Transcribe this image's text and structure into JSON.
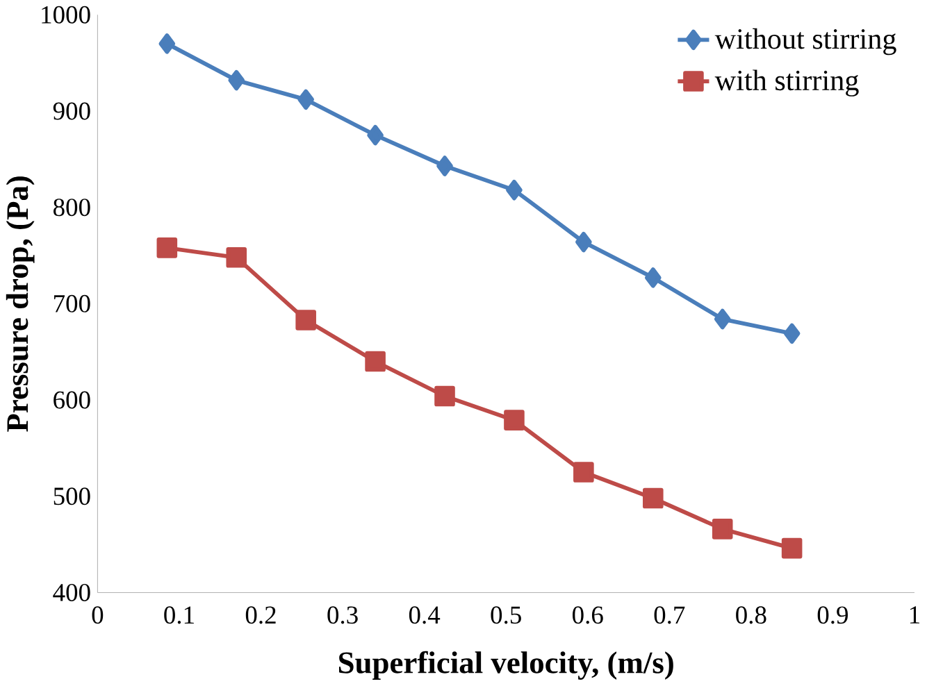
{
  "chart_data": {
    "type": "line",
    "xlabel": "Superficial velocity, (m/s)",
    "ylabel": "Pressure drop, (Pa)",
    "x": [
      0.085,
      0.17,
      0.255,
      0.34,
      0.425,
      0.51,
      0.595,
      0.68,
      0.765,
      0.85
    ],
    "series": [
      {
        "name": "without stirring",
        "color": "#4a7ebb",
        "marker": "diamond",
        "values": [
          970,
          932,
          912,
          875,
          843,
          818,
          764,
          727,
          684,
          669
        ]
      },
      {
        "name": "with stirring",
        "color": "#be4b48",
        "marker": "square",
        "values": [
          758,
          748,
          683,
          640,
          604,
          579,
          525,
          498,
          466,
          446
        ]
      }
    ],
    "xlim": [
      0,
      1
    ],
    "xticks": [
      0,
      0.1,
      0.2,
      0.3,
      0.4,
      0.5,
      0.6,
      0.7,
      0.8,
      0.9,
      1
    ],
    "ylim": [
      400,
      1000
    ],
    "yticks": [
      400,
      500,
      600,
      700,
      800,
      900,
      1000
    ],
    "legend": "top right",
    "grid": false,
    "line_style": "solid"
  }
}
